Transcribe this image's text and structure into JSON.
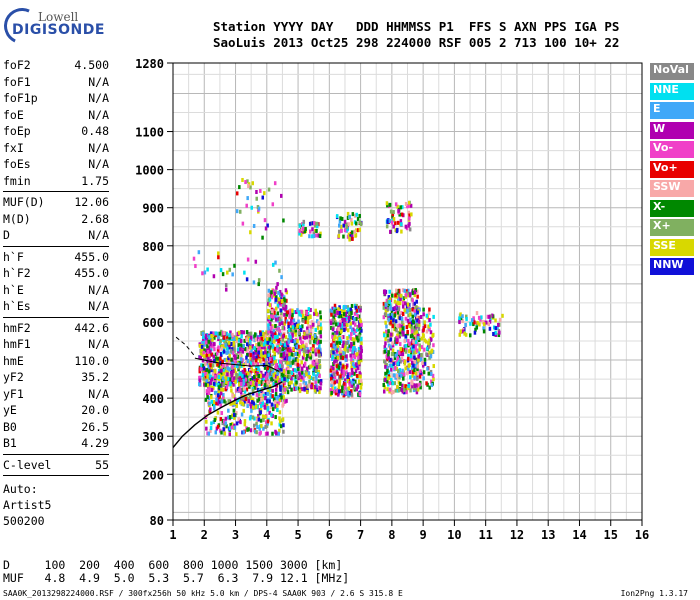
{
  "logo": {
    "line1": "Lowell",
    "line2": "DIGISONDE"
  },
  "header": {
    "line1": "Station YYYY DAY   DDD HHMMSS P1  FFS S AXN PPS IGA PS",
    "line2": "SaoLuis 2013 Oct25 298 224000 RSF 005 2 713 100 10+ 22"
  },
  "params": [
    [
      {
        "k": "foF2",
        "v": "4.500"
      },
      {
        "k": "foF1",
        "v": "N/A"
      },
      {
        "k": "foF1p",
        "v": "N/A"
      },
      {
        "k": "foE",
        "v": "N/A"
      },
      {
        "k": "foEp",
        "v": "0.48"
      },
      {
        "k": "fxI",
        "v": "N/A"
      },
      {
        "k": "foEs",
        "v": "N/A"
      },
      {
        "k": "fmin",
        "v": "1.75"
      }
    ],
    [
      {
        "k": "MUF(D)",
        "v": "12.06"
      },
      {
        "k": "M(D)",
        "v": "2.68"
      },
      {
        "k": "D",
        "v": "N/A"
      }
    ],
    [
      {
        "k": "h`F",
        "v": "455.0"
      },
      {
        "k": "h`F2",
        "v": "455.0"
      },
      {
        "k": "h`E",
        "v": "N/A"
      },
      {
        "k": "h`Es",
        "v": "N/A"
      }
    ],
    [
      {
        "k": "hmF2",
        "v": "442.6"
      },
      {
        "k": "hmF1",
        "v": "N/A"
      },
      {
        "k": "hmE",
        "v": "110.0"
      },
      {
        "k": "yF2",
        "v": "35.2"
      },
      {
        "k": "yF1",
        "v": "N/A"
      },
      {
        "k": "yE",
        "v": "20.0"
      },
      {
        "k": "B0",
        "v": "26.5"
      },
      {
        "k": "B1",
        "v": "4.29"
      }
    ],
    [
      {
        "k": "C-level",
        "v": "55"
      }
    ]
  ],
  "auto": {
    "line1": "Auto:",
    "line2": "Artist5",
    "line3": "500200"
  },
  "legend": [
    {
      "label": "NoVal",
      "color": "#888888"
    },
    {
      "label": "NNE",
      "color": "#00e0f0"
    },
    {
      "label": "E",
      "color": "#40a8f8"
    },
    {
      "label": "W",
      "color": "#b000b0"
    },
    {
      "label": "Vo-",
      "color": "#f040c8"
    },
    {
      "label": "Vo+",
      "color": "#e80000"
    },
    {
      "label": "SSW",
      "color": "#f8a8a8"
    },
    {
      "label": "X-",
      "color": "#008800"
    },
    {
      "label": "X+",
      "color": "#80b060"
    },
    {
      "label": "SSE",
      "color": "#d8d800"
    },
    {
      "label": "NNW",
      "color": "#1010d8"
    }
  ],
  "bottom": {
    "row1": "D     100  200  400  600  800 1000 1500 3000 [km]",
    "row2": "MUF   4.8  4.9  5.0  5.3  5.7  6.3  7.9 12.1 [MHz]"
  },
  "footer": {
    "left": "SAA0K_2013298224000.RSF / 300fx256h 50 kHz 5.0 km / DPS-4 SAA0K 903 / 2.6 S 315.8 E",
    "right": "Ion2Png 1.3.17"
  },
  "chart_data": {
    "type": "scatter",
    "title": "",
    "xlabel": "",
    "ylabel": "",
    "xlim": [
      1,
      16
    ],
    "ylim": [
      80,
      1280
    ],
    "x_ticks": [
      1,
      2,
      3,
      4,
      5,
      6,
      7,
      8,
      9,
      10,
      11,
      12,
      13,
      14,
      15,
      16
    ],
    "y_ticks": [
      80,
      200,
      300,
      400,
      500,
      600,
      700,
      800,
      900,
      1000,
      1100,
      1280
    ],
    "grid": true,
    "clusters": [
      {
        "x": [
          1.8,
          4.6
        ],
        "y": [
          440,
          580
        ],
        "n": 900
      },
      {
        "x": [
          2,
          4.6
        ],
        "y": [
          380,
          470
        ],
        "n": 350
      },
      {
        "x": [
          2,
          4.5
        ],
        "y": [
          310,
          380
        ],
        "n": 140
      },
      {
        "x": [
          4,
          4.6
        ],
        "y": [
          580,
          690
        ],
        "n": 120
      },
      {
        "x": [
          4.6,
          5.7
        ],
        "y": [
          420,
          640
        ],
        "n": 400
      },
      {
        "x": [
          6,
          7
        ],
        "y": [
          410,
          650
        ],
        "n": 480
      },
      {
        "x": [
          7.7,
          8.8
        ],
        "y": [
          420,
          690
        ],
        "n": 480
      },
      {
        "x": [
          8.6,
          9.3
        ],
        "y": [
          430,
          640
        ],
        "n": 150
      },
      {
        "x": [
          5,
          5.7
        ],
        "y": [
          830,
          870
        ],
        "n": 40
      },
      {
        "x": [
          6.2,
          7
        ],
        "y": [
          820,
          890
        ],
        "n": 60
      },
      {
        "x": [
          7.8,
          8.6
        ],
        "y": [
          840,
          920
        ],
        "n": 60
      },
      {
        "x": [
          10,
          11.5
        ],
        "y": [
          570,
          630
        ],
        "n": 70
      },
      {
        "x": [
          3,
          4.5
        ],
        "y": [
          820,
          980
        ],
        "n": 35
      },
      {
        "x": [
          1.5,
          4.5
        ],
        "y": [
          680,
          790
        ],
        "n": 30
      }
    ],
    "profile": {
      "x": [
        1,
        1.3,
        1.7,
        2.1,
        2.6,
        3.0,
        3.4,
        3.8,
        4.2,
        4.5
      ],
      "y": [
        270,
        300,
        330,
        355,
        378,
        395,
        410,
        420,
        430,
        443
      ]
    },
    "trace_upper": {
      "x": [
        1.7,
        2.0,
        2.5,
        3.0,
        3.5,
        4.0,
        4.4
      ],
      "y": [
        505,
        500,
        492,
        488,
        484,
        486,
        470
      ]
    },
    "dashed": {
      "x": [
        1.1,
        1.4,
        1.7
      ],
      "y": [
        560,
        540,
        510
      ]
    }
  }
}
